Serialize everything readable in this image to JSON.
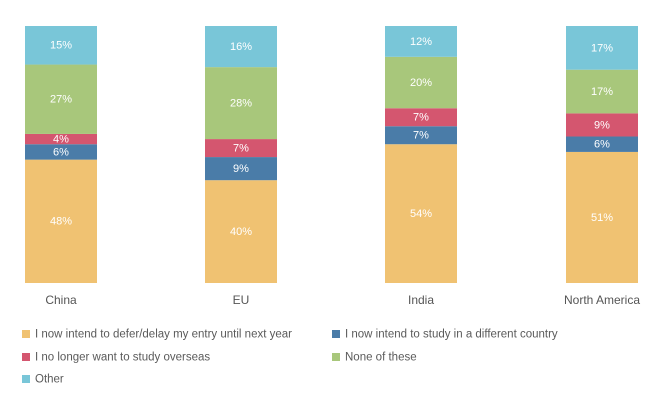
{
  "chart_data": {
    "type": "bar",
    "stacked": true,
    "normalized": true,
    "title": "",
    "xlabel": "",
    "ylabel": "",
    "ylim": [
      0,
      100
    ],
    "grid": false,
    "legend_position": "bottom",
    "categories": [
      "China",
      "EU",
      "India",
      "North America"
    ],
    "series": [
      {
        "name": "I now intend to defer/delay my entry until next year",
        "color": "#f0c272",
        "values": [
          48,
          40,
          54,
          51
        ]
      },
      {
        "name": "I now intend to study in a different country",
        "color": "#4a7ca8",
        "values": [
          6,
          9,
          7,
          6
        ]
      },
      {
        "name": "I no longer want to study overseas",
        "color": "#d4566f",
        "values": [
          4,
          7,
          7,
          9
        ]
      },
      {
        "name": "None of these",
        "color": "#a8c77b",
        "values": [
          27,
          28,
          20,
          17
        ]
      },
      {
        "name": "Other",
        "color": "#79c6d8",
        "values": [
          15,
          16,
          12,
          17
        ]
      }
    ],
    "legend_order": [
      "I now intend to defer/delay my entry until next year",
      "I now intend to study in a different country",
      "I no longer want to study overseas",
      "None of these",
      "Other"
    ]
  }
}
